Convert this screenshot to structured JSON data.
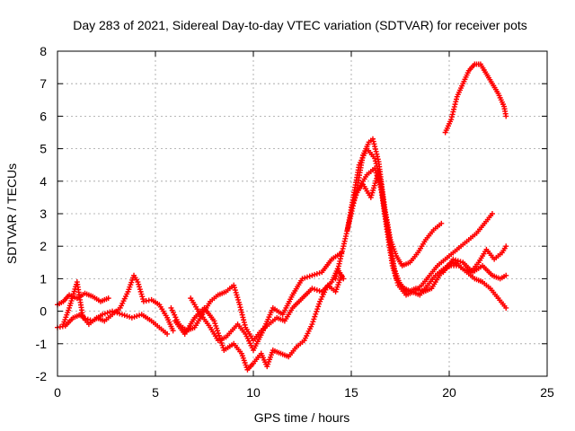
{
  "chart_data": {
    "type": "scatter",
    "title": "Day 283 of 2021, Sidereal Day-to-day VTEC variation (SDTVAR) for receiver pots",
    "xlabel": "GPS time / hours",
    "ylabel": "SDTVAR / TECUs",
    "xlim": [
      0,
      25
    ],
    "ylim": [
      -2,
      8
    ],
    "x_ticks": [
      0,
      5,
      10,
      15,
      20,
      25
    ],
    "y_ticks": [
      -2,
      -1,
      0,
      1,
      2,
      3,
      4,
      5,
      6,
      7,
      8
    ],
    "grid": true,
    "marker": "+",
    "color": "#ff0000",
    "series": [
      {
        "name": "track-1",
        "points": [
          [
            0.0,
            0.2
          ],
          [
            0.3,
            0.3
          ],
          [
            0.6,
            0.5
          ],
          [
            1.0,
            0.4
          ],
          [
            1.4,
            0.55
          ],
          [
            1.8,
            0.45
          ],
          [
            2.2,
            0.3
          ],
          [
            2.6,
            0.4
          ]
        ]
      },
      {
        "name": "track-2",
        "points": [
          [
            0.0,
            -0.5
          ],
          [
            0.4,
            -0.45
          ],
          [
            0.8,
            -0.2
          ],
          [
            1.2,
            -0.1
          ],
          [
            1.6,
            -0.4
          ],
          [
            2.0,
            -0.2
          ],
          [
            2.4,
            -0.3
          ],
          [
            2.8,
            -0.1
          ],
          [
            3.2,
            0.1
          ],
          [
            3.6,
            0.6
          ],
          [
            3.9,
            1.1
          ],
          [
            4.1,
            0.9
          ],
          [
            4.4,
            0.3
          ],
          [
            4.8,
            0.35
          ],
          [
            5.2,
            0.2
          ],
          [
            5.6,
            -0.2
          ],
          [
            5.9,
            -0.6
          ]
        ]
      },
      {
        "name": "track-3",
        "points": [
          [
            0.3,
            -0.4
          ],
          [
            0.6,
            0.1
          ],
          [
            1.0,
            0.9
          ],
          [
            1.3,
            -0.2
          ],
          [
            1.8,
            -0.3
          ],
          [
            2.3,
            -0.1
          ],
          [
            2.8,
            0.0
          ],
          [
            3.3,
            -0.1
          ],
          [
            3.8,
            -0.2
          ],
          [
            4.3,
            -0.1
          ],
          [
            4.8,
            -0.3
          ],
          [
            5.2,
            -0.5
          ],
          [
            5.6,
            -0.7
          ]
        ]
      },
      {
        "name": "track-4",
        "points": [
          [
            5.8,
            0.1
          ],
          [
            6.2,
            -0.4
          ],
          [
            6.6,
            -0.6
          ],
          [
            7.0,
            -0.5
          ],
          [
            7.4,
            -0.1
          ],
          [
            7.8,
            0.3
          ],
          [
            8.2,
            0.5
          ],
          [
            8.6,
            0.6
          ],
          [
            9.0,
            0.8
          ],
          [
            9.3,
            0.2
          ],
          [
            9.6,
            -0.5
          ],
          [
            10.0,
            -0.9
          ],
          [
            10.4,
            -0.6
          ],
          [
            10.8,
            -0.4
          ],
          [
            11.2,
            -0.2
          ],
          [
            11.6,
            -0.3
          ],
          [
            12.0,
            0.1
          ],
          [
            12.5,
            0.4
          ],
          [
            13.0,
            0.7
          ],
          [
            13.5,
            0.6
          ],
          [
            14.0,
            0.9
          ],
          [
            14.3,
            1.3
          ],
          [
            14.6,
            1.0
          ]
        ]
      },
      {
        "name": "track-5",
        "points": [
          [
            6.0,
            -0.3
          ],
          [
            6.5,
            -0.7
          ],
          [
            7.0,
            -0.2
          ],
          [
            7.5,
            0.1
          ],
          [
            8.0,
            -0.3
          ],
          [
            8.5,
            -1.2
          ],
          [
            9.0,
            -1.0
          ],
          [
            9.4,
            -1.3
          ],
          [
            9.7,
            -1.8
          ],
          [
            10.0,
            -1.6
          ],
          [
            10.4,
            -1.3
          ],
          [
            10.7,
            -1.7
          ],
          [
            11.0,
            -1.2
          ],
          [
            11.4,
            -1.3
          ],
          [
            11.8,
            -1.4
          ],
          [
            12.2,
            -1.1
          ],
          [
            12.6,
            -0.9
          ],
          [
            13.0,
            -0.4
          ],
          [
            13.4,
            0.3
          ],
          [
            13.8,
            0.8
          ],
          [
            14.2,
            0.6
          ],
          [
            14.5,
            1.1
          ]
        ]
      },
      {
        "name": "track-6",
        "points": [
          [
            6.8,
            0.4
          ],
          [
            7.2,
            0.0
          ],
          [
            7.8,
            -0.5
          ],
          [
            8.2,
            -0.9
          ],
          [
            8.6,
            -0.8
          ],
          [
            9.2,
            -0.4
          ],
          [
            9.6,
            -0.7
          ],
          [
            10.0,
            -1.2
          ],
          [
            10.5,
            -0.6
          ],
          [
            11.0,
            0.1
          ],
          [
            11.5,
            -0.1
          ],
          [
            12.0,
            0.5
          ],
          [
            12.5,
            1.0
          ],
          [
            13.0,
            1.1
          ],
          [
            13.5,
            1.2
          ],
          [
            14.0,
            1.6
          ],
          [
            14.5,
            1.8
          ]
        ]
      },
      {
        "name": "track-7",
        "points": [
          [
            14.2,
            1.0
          ],
          [
            14.6,
            2.0
          ],
          [
            15.0,
            3.0
          ],
          [
            15.3,
            3.8
          ],
          [
            15.6,
            4.8
          ],
          [
            15.9,
            5.2
          ],
          [
            16.1,
            5.3
          ],
          [
            16.4,
            4.6
          ],
          [
            16.7,
            3.2
          ],
          [
            17.0,
            2.2
          ],
          [
            17.3,
            1.7
          ],
          [
            17.6,
            1.4
          ],
          [
            18.0,
            1.5
          ],
          [
            18.4,
            1.8
          ],
          [
            18.8,
            2.2
          ],
          [
            19.2,
            2.5
          ],
          [
            19.6,
            2.7
          ]
        ]
      },
      {
        "name": "track-8",
        "points": [
          [
            14.8,
            2.5
          ],
          [
            15.1,
            3.5
          ],
          [
            15.4,
            4.5
          ],
          [
            15.8,
            5.0
          ],
          [
            16.2,
            4.7
          ],
          [
            16.5,
            4.0
          ],
          [
            16.8,
            2.6
          ],
          [
            17.1,
            1.4
          ],
          [
            17.4,
            0.8
          ],
          [
            17.8,
            0.5
          ],
          [
            18.2,
            0.6
          ],
          [
            18.6,
            0.8
          ],
          [
            19.0,
            1.1
          ],
          [
            19.4,
            1.4
          ],
          [
            19.8,
            1.6
          ],
          [
            20.2,
            1.8
          ],
          [
            20.6,
            2.0
          ],
          [
            21.0,
            2.2
          ],
          [
            21.4,
            2.4
          ],
          [
            21.8,
            2.7
          ],
          [
            22.2,
            3.0
          ]
        ]
      },
      {
        "name": "track-9",
        "points": [
          [
            15.0,
            3.2
          ],
          [
            15.4,
            3.8
          ],
          [
            15.8,
            4.2
          ],
          [
            16.2,
            4.4
          ],
          [
            16.6,
            3.6
          ],
          [
            16.9,
            2.4
          ],
          [
            17.2,
            1.3
          ],
          [
            17.5,
            0.8
          ],
          [
            17.9,
            0.6
          ],
          [
            18.3,
            0.7
          ],
          [
            18.7,
            0.6
          ],
          [
            19.1,
            0.7
          ],
          [
            19.5,
            1.1
          ],
          [
            19.9,
            1.4
          ],
          [
            20.3,
            1.5
          ],
          [
            20.7,
            1.3
          ],
          [
            21.1,
            1.2
          ],
          [
            21.5,
            1.5
          ],
          [
            21.9,
            1.9
          ],
          [
            22.3,
            1.6
          ],
          [
            22.7,
            1.8
          ],
          [
            22.9,
            2.0
          ]
        ]
      },
      {
        "name": "track-10",
        "points": [
          [
            15.2,
            3.6
          ],
          [
            15.6,
            3.9
          ],
          [
            16.0,
            3.5
          ],
          [
            16.4,
            4.3
          ],
          [
            16.7,
            3.0
          ],
          [
            17.0,
            1.8
          ],
          [
            17.3,
            1.0
          ],
          [
            17.7,
            0.7
          ],
          [
            18.1,
            0.6
          ],
          [
            18.5,
            0.5
          ],
          [
            18.9,
            0.8
          ],
          [
            19.3,
            1.1
          ],
          [
            19.7,
            1.3
          ],
          [
            20.1,
            1.4
          ],
          [
            20.5,
            1.4
          ],
          [
            20.9,
            1.2
          ],
          [
            21.3,
            1.0
          ],
          [
            21.7,
            0.9
          ],
          [
            22.1,
            0.7
          ],
          [
            22.5,
            0.4
          ],
          [
            22.9,
            0.1
          ]
        ]
      },
      {
        "name": "track-11",
        "points": [
          [
            19.7,
            1.2
          ],
          [
            20.2,
            1.6
          ],
          [
            20.7,
            1.5
          ],
          [
            21.2,
            1.2
          ],
          [
            21.7,
            1.4
          ],
          [
            22.2,
            1.1
          ],
          [
            22.6,
            1.0
          ],
          [
            22.9,
            1.1
          ]
        ]
      },
      {
        "name": "track-12",
        "points": [
          [
            19.8,
            5.5
          ],
          [
            20.1,
            5.9
          ],
          [
            20.4,
            6.6
          ],
          [
            20.7,
            7.0
          ],
          [
            21.0,
            7.4
          ],
          [
            21.3,
            7.6
          ],
          [
            21.6,
            7.6
          ],
          [
            21.9,
            7.3
          ],
          [
            22.2,
            7.0
          ],
          [
            22.5,
            6.7
          ],
          [
            22.8,
            6.3
          ],
          [
            22.9,
            6.0
          ]
        ]
      }
    ]
  }
}
